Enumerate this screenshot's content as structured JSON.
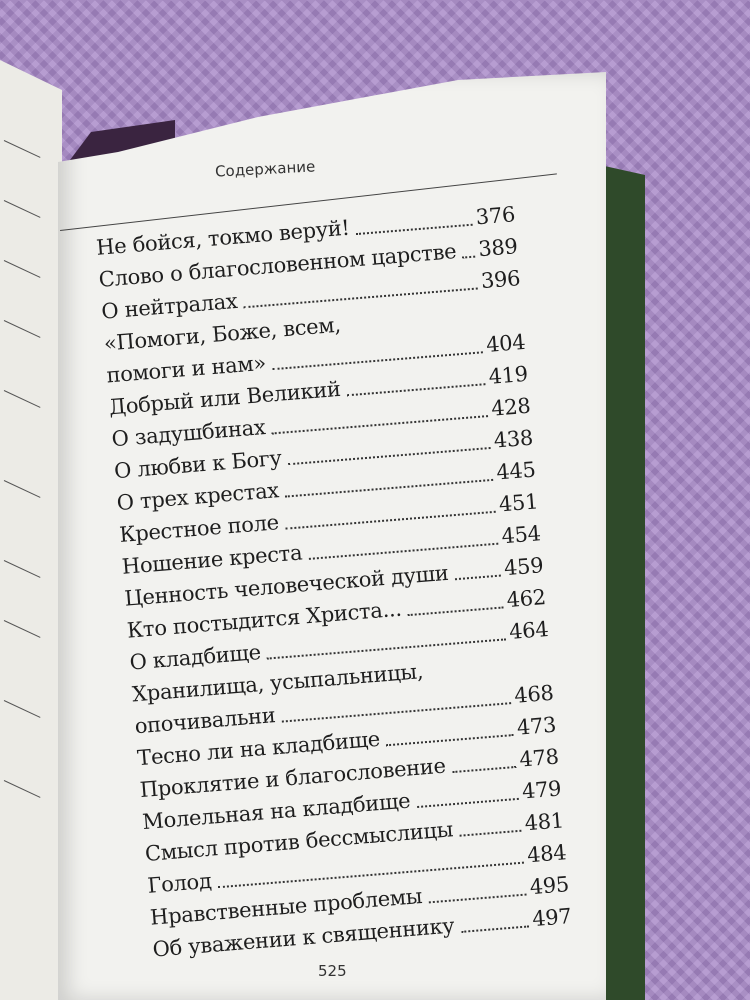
{
  "header": {
    "title": "Содержание"
  },
  "toc": [
    {
      "title": "Не бойся, токмо веруй!",
      "page": "376"
    },
    {
      "title": "Слово о благословенном царстве",
      "page": "389"
    },
    {
      "title": "О нейтралах",
      "page": "396"
    },
    {
      "title_line1": "«Помоги, Боже, всем,",
      "title": "помоги и нам»",
      "page": "404"
    },
    {
      "title": "Добрый или Великий",
      "page": "419"
    },
    {
      "title": "О задушбинах",
      "page": "428"
    },
    {
      "title": "О любви к Богу",
      "page": "438"
    },
    {
      "title": "О трех крестах",
      "page": "445"
    },
    {
      "title": "Крестное поле",
      "page": "451"
    },
    {
      "title": "Ношение креста",
      "page": "454"
    },
    {
      "title": "Ценность человеческой души",
      "page": "459"
    },
    {
      "title": "Кто постыдится Христа...",
      "page": "462"
    },
    {
      "title": "О кладбище",
      "page": "464"
    },
    {
      "title_line1": "Хранилища, усыпальницы,",
      "title": "опочивальни",
      "page": "468"
    },
    {
      "title": "Тесно ли на кладбище",
      "page": "473"
    },
    {
      "title": "Проклятие и благословение",
      "page": "478"
    },
    {
      "title": "Молельная на кладбище",
      "page": "479"
    },
    {
      "title": "Смысл против бессмыслицы",
      "page": "481"
    },
    {
      "title": "Голод",
      "page": "484"
    },
    {
      "title": "Нравственные проблемы",
      "page": "495"
    },
    {
      "title": "Об уважении к священнику",
      "page": "497"
    }
  ],
  "footer": {
    "page_number": "525"
  },
  "colors": {
    "background": "#a889c8",
    "cover": "#2f4a2a",
    "paper": "#f2f2ef"
  }
}
